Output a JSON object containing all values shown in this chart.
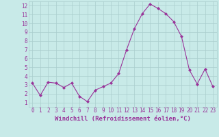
{
  "x": [
    0,
    1,
    2,
    3,
    4,
    5,
    6,
    7,
    8,
    9,
    10,
    11,
    12,
    13,
    14,
    15,
    16,
    17,
    18,
    19,
    20,
    21,
    22,
    23
  ],
  "y": [
    3.2,
    1.8,
    3.3,
    3.2,
    2.7,
    3.2,
    1.7,
    1.1,
    2.4,
    2.8,
    3.2,
    4.3,
    7.0,
    9.4,
    11.1,
    12.2,
    11.7,
    11.1,
    10.2,
    8.5,
    4.7,
    3.1,
    4.8,
    2.8
  ],
  "line_color": "#993399",
  "marker": "D",
  "marker_size": 2,
  "bg_color": "#c8eae8",
  "grid_color": "#aacece",
  "xlabel": "Windchill (Refroidissement éolien,°C)",
  "xlabel_color": "#993399",
  "tick_color": "#993399",
  "ylim": [
    0.5,
    12.5
  ],
  "xlim": [
    -0.5,
    23.5
  ],
  "yticks": [
    1,
    2,
    3,
    4,
    5,
    6,
    7,
    8,
    9,
    10,
    11,
    12
  ],
  "xticks": [
    0,
    1,
    2,
    3,
    4,
    5,
    6,
    7,
    8,
    9,
    10,
    11,
    12,
    13,
    14,
    15,
    16,
    17,
    18,
    19,
    20,
    21,
    22,
    23
  ],
  "font_size_ticks": 5.5,
  "font_size_xlabel": 6.5,
  "linewidth": 0.8
}
